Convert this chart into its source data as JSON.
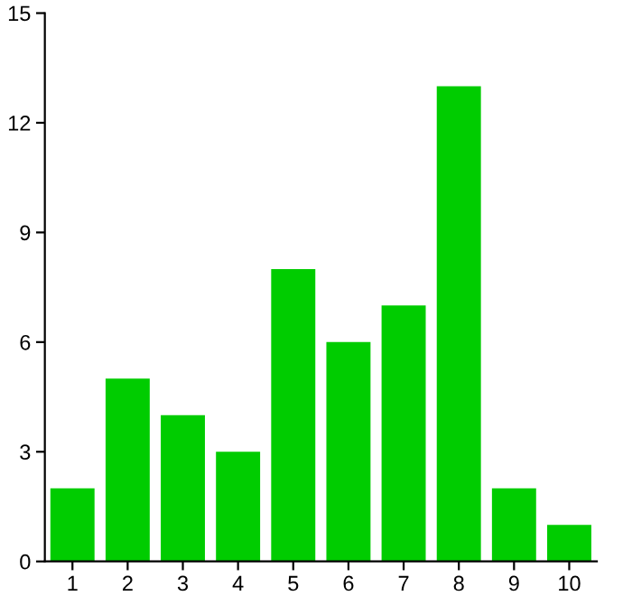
{
  "chart_data": {
    "type": "bar",
    "categories": [
      "1",
      "2",
      "3",
      "4",
      "5",
      "6",
      "7",
      "8",
      "9",
      "10"
    ],
    "values": [
      2,
      5,
      4,
      3,
      8,
      6,
      7,
      13,
      2,
      1
    ],
    "color": "#00cc00",
    "ylim": [
      0,
      15
    ],
    "yticks": [
      0,
      3,
      6,
      9,
      12,
      15
    ],
    "grid": false
  }
}
